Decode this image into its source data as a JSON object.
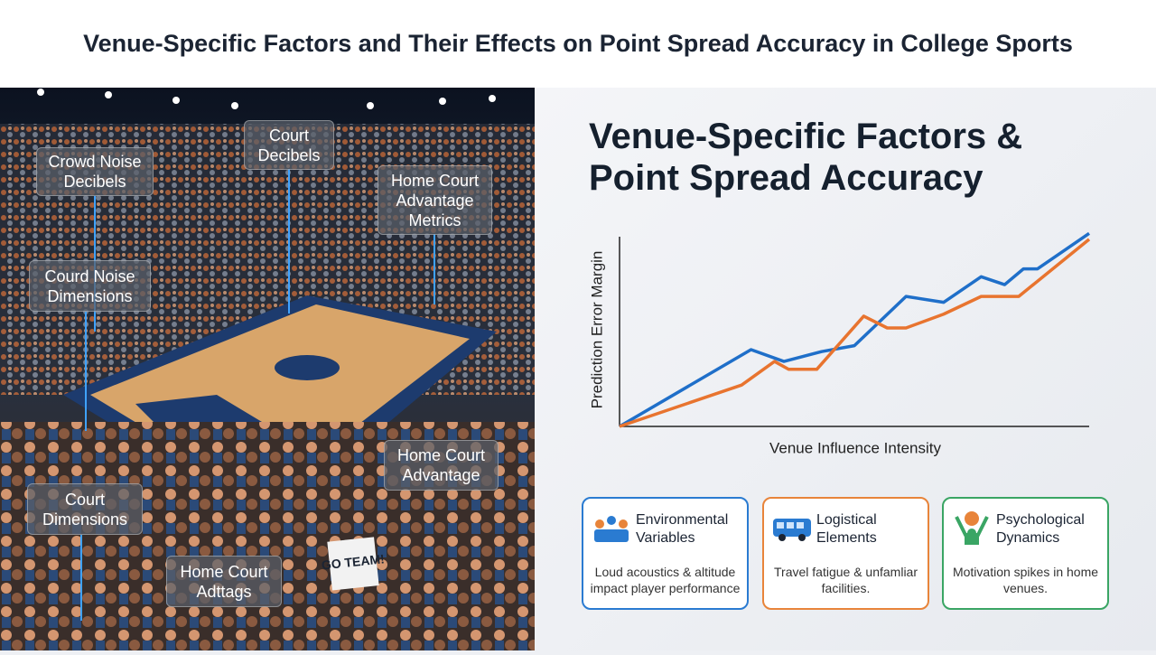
{
  "header": {
    "title": "Venue-Specific Factors and Their Effects on Point Spread Accuracy in College Sports"
  },
  "arena": {
    "labels": [
      "Crowd Noise Decibels",
      "Court Decibels",
      "Home Court Advantage Metrics",
      "Courd Noise Dimensions",
      "Home Court Advantage",
      "Court Dimensions",
      "Home Court Adttags"
    ],
    "sign": "GO TEAM!"
  },
  "chart_data": {
    "type": "line",
    "title": "Venue-Specific Factors & Point Spread Accuracy",
    "x_label": "Venue Influence Intensity",
    "y_label": "Prediction Error Margin",
    "xlim": [
      0,
      100
    ],
    "ylim": [
      0,
      100
    ],
    "series": [
      {
        "color": "#1f6fc9",
        "x": [
          0,
          28,
          35,
          43,
          50,
          61,
          69,
          77,
          82,
          86,
          89,
          100
        ],
        "values": [
          0,
          39,
          33,
          38,
          41,
          66,
          63,
          76,
          72,
          80,
          80,
          98
        ]
      },
      {
        "color": "#e8742f",
        "x": [
          0,
          26,
          33,
          36,
          42,
          52,
          57,
          61,
          69,
          77,
          85,
          100
        ],
        "values": [
          0,
          21,
          33,
          29,
          29,
          56,
          50,
          50,
          57,
          66,
          66,
          95
        ]
      }
    ]
  },
  "cards": [
    {
      "title": "Environmental Variables",
      "text": "Loud acoustics & altitude impact player performance",
      "color": "#2a7bd1"
    },
    {
      "title": "Logistical Elements",
      "text": "Travel fatigue & unfamliar facilities.",
      "color": "#e8843a"
    },
    {
      "title": "Psychological Dynamics",
      "text": "Motivation spikes in home venues.",
      "color": "#3aa564"
    }
  ]
}
